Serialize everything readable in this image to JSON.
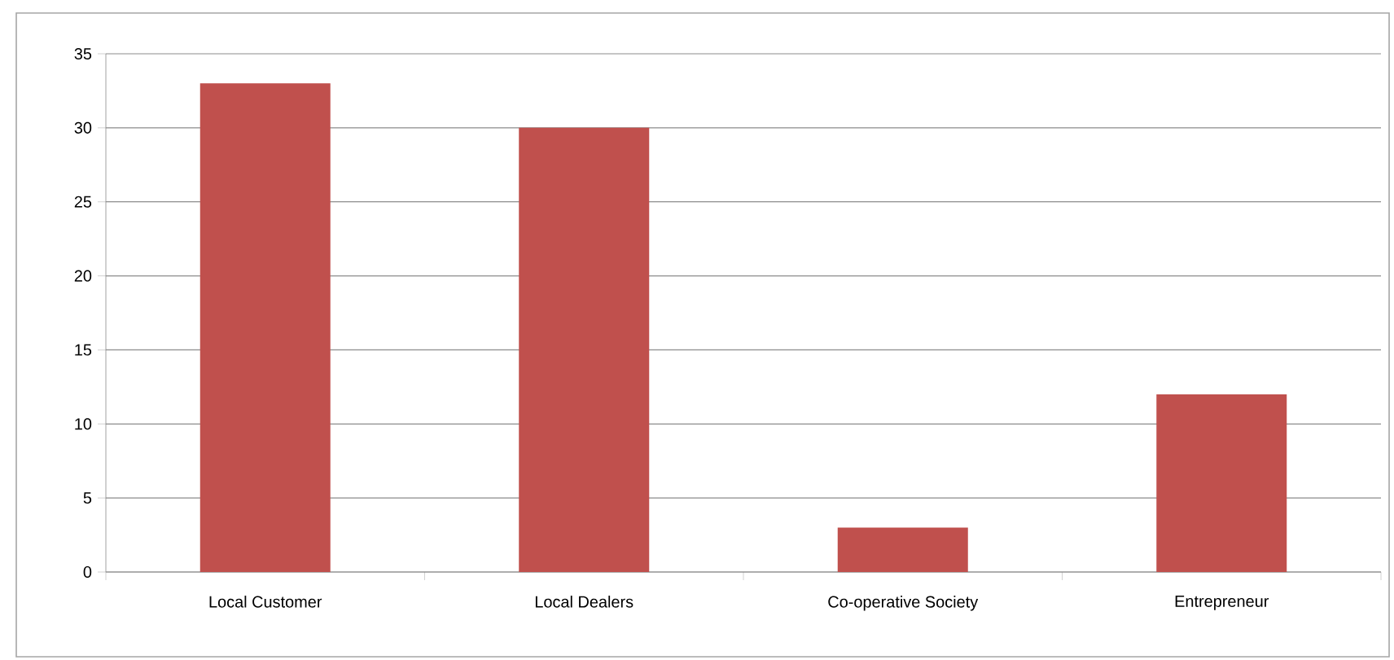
{
  "chart_data": {
    "type": "bar",
    "categories": [
      "Local Customer",
      "Local Dealers",
      "Co-operative Society",
      "Entrepreneur"
    ],
    "values": [
      33,
      30,
      3,
      12
    ],
    "color": "#c0504d",
    "ylim": [
      0,
      35
    ],
    "yticks": [
      0,
      5,
      10,
      15,
      20,
      25,
      30,
      35
    ],
    "grid": "y"
  }
}
